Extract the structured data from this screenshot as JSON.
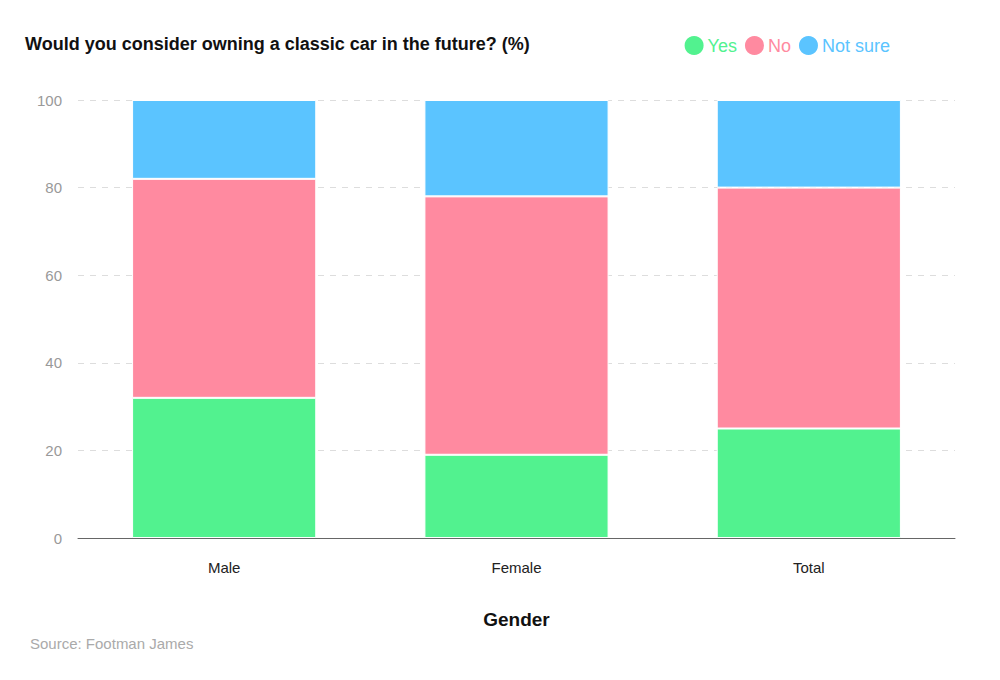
{
  "chart_data": {
    "type": "bar",
    "title": "Would you consider owning a classic car in the future? (%)",
    "x_label": "Gender",
    "source": "Source: Footman James",
    "categories": [
      "Male",
      "Female",
      "Total"
    ],
    "series": [
      {
        "name": "Yes",
        "color": "#52f28f",
        "values": [
          32,
          19,
          25
        ]
      },
      {
        "name": "No",
        "color": "#ff8aa0",
        "values": [
          50,
          59,
          55
        ]
      },
      {
        "name": "Not sure",
        "color": "#5bc4ff",
        "values": [
          18,
          22,
          20
        ]
      }
    ],
    "stacked": true,
    "ylim": [
      0,
      100
    ],
    "yticks": [
      0,
      20,
      40,
      60,
      80,
      100
    ],
    "grid": true,
    "legend": "top-right"
  }
}
